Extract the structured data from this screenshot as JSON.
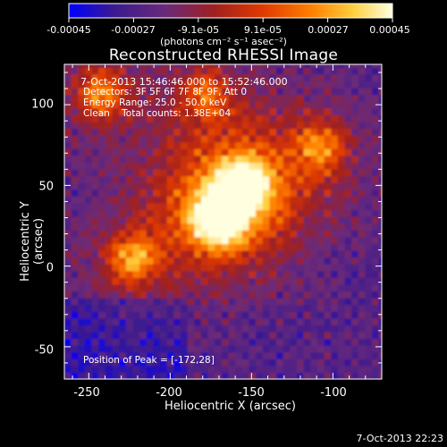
{
  "chart_data": {
    "type": "heatmap",
    "title": "Reconstructed RHESSI Image",
    "xlabel": "Heliocentric X (arcsec)",
    "ylabel": "Heliocentric Y (arcsec)",
    "xlim": [
      -265,
      -70
    ],
    "ylim": [
      -70,
      125
    ],
    "x_ticks": [
      "-250",
      "-200",
      "-150",
      "-100"
    ],
    "y_ticks": [
      "100",
      "50",
      "0",
      "-50"
    ],
    "colorbar": {
      "range": [
        -0.00045,
        0.00045
      ],
      "tick_labels": [
        "-0.00045",
        "-0.00027",
        "-9.1e-05",
        "9.1e-05",
        "0.00027",
        "0.00045"
      ],
      "unit_label": "(photons cm⁻² s⁻¹ asec⁻²)"
    },
    "colormap_stops": [
      "#0000ff",
      "#3b1a8f",
      "#6a2a7a",
      "#a02020",
      "#e03a00",
      "#ff8000",
      "#ffd040",
      "#ffffe0"
    ],
    "sources": [
      {
        "x": -172,
        "y": 28,
        "level": 1.0
      },
      {
        "x": -157,
        "y": 48,
        "level": 0.85
      },
      {
        "x": -225,
        "y": 2,
        "level": 0.55
      },
      {
        "x": -110,
        "y": 72,
        "level": 0.45
      },
      {
        "x": -245,
        "y": 105,
        "level": 0.5
      },
      {
        "x": -180,
        "y": 105,
        "level": 0.4
      }
    ],
    "annotations": [
      "7-Oct-2013 15:46:46.000 to 15:52:46.000",
      "Detectors: 3F 5F 6F 7F 8F 9F, Att 0",
      "Energy Range: 25.0 - 50.0 keV",
      "Clean    Total counts: 1.38E+04"
    ],
    "peak_text": "Position of Peak = [-172,28]",
    "grid": false
  },
  "timestamp": "7-Oct-2013 22:23"
}
